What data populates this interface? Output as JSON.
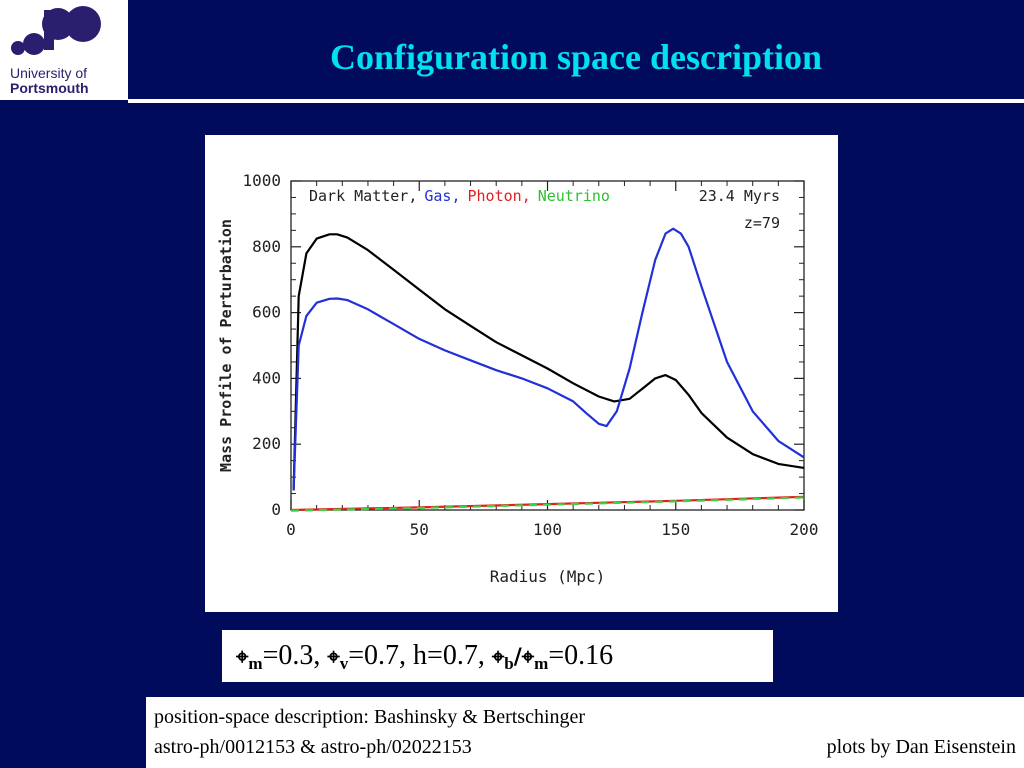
{
  "logo": {
    "line1": "University of",
    "line2": "Portsmouth"
  },
  "slide": {
    "title": "Configuration space description"
  },
  "colors": {
    "background": "#000b5c",
    "title": "#00e0f0",
    "dark_matter": "#000000",
    "gas": "#2230d8",
    "photon": "#e02020",
    "neutrino": "#40d040"
  },
  "chart_data": {
    "type": "line",
    "xlabel": "Radius (Mpc)",
    "ylabel": "Mass Profile of Perturbation",
    "xlim": [
      0,
      200
    ],
    "ylim": [
      0,
      1000
    ],
    "xticks": [
      0,
      50,
      100,
      150,
      200
    ],
    "yticks": [
      0,
      200,
      400,
      600,
      800,
      1000
    ],
    "legend_location": "top",
    "legend_separator": ",",
    "annotations": [
      "23.4 Myrs",
      "z=79"
    ],
    "series": [
      {
        "name": "Dark Matter",
        "color": "#000000",
        "dash": false,
        "x": [
          1,
          3,
          6,
          10,
          15,
          18,
          22,
          30,
          40,
          50,
          60,
          70,
          80,
          90,
          100,
          110,
          120,
          126,
          132,
          138,
          142,
          146,
          150,
          155,
          160,
          170,
          180,
          190,
          200
        ],
        "y": [
          60,
          650,
          780,
          825,
          838,
          838,
          828,
          790,
          730,
          670,
          610,
          560,
          510,
          470,
          430,
          385,
          345,
          330,
          338,
          375,
          400,
          410,
          395,
          350,
          295,
          220,
          170,
          140,
          128
        ]
      },
      {
        "name": "Gas",
        "color": "#2230d8",
        "dash": false,
        "x": [
          1,
          3,
          6,
          10,
          15,
          18,
          22,
          30,
          40,
          50,
          60,
          70,
          80,
          90,
          100,
          110,
          115,
          120,
          123,
          127,
          132,
          137,
          142,
          146,
          149,
          152,
          155,
          160,
          170,
          180,
          190,
          200
        ],
        "y": [
          60,
          500,
          590,
          630,
          642,
          643,
          638,
          610,
          565,
          520,
          485,
          455,
          425,
          400,
          370,
          330,
          295,
          262,
          255,
          300,
          430,
          600,
          760,
          840,
          855,
          840,
          800,
          680,
          450,
          300,
          210,
          160
        ]
      },
      {
        "name": "Photon",
        "color": "#e02020",
        "dash": false,
        "x": [
          0,
          50,
          100,
          150,
          200
        ],
        "y": [
          0,
          8,
          18,
          28,
          40
        ]
      },
      {
        "name": "Neutrino",
        "color": "#40d040",
        "dash": true,
        "x": [
          0,
          50,
          100,
          150,
          200
        ],
        "y": [
          -2,
          6,
          16,
          26,
          38
        ]
      }
    ]
  },
  "params": {
    "omega_m_sub": "m",
    "omega_m_val": "=0.3, ",
    "omega_v_sub": "v",
    "omega_v_val": "=0.7, h=0.7, ",
    "omega_b_sub": "b",
    "slash": "/",
    "omega_m2_sub": "m",
    "omega_ratio_val": "=0.16"
  },
  "credits": {
    "line1": "position-space description: Bashinsky & Bertschinger",
    "line2": "astro-ph/0012153 & astro-ph/02022153",
    "right": "plots by Dan Eisenstein"
  }
}
